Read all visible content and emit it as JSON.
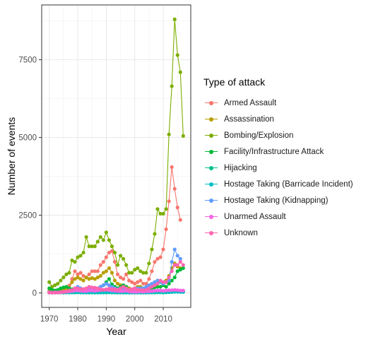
{
  "chart_data": {
    "type": "line",
    "xlabel": "Year",
    "ylabel": "Number of events",
    "xlim": [
      1970,
      2017
    ],
    "ylim": [
      0,
      8800
    ],
    "xticks": [
      1970,
      1980,
      1990,
      2000,
      2010
    ],
    "yticks": [
      0,
      2500,
      5000,
      7500
    ],
    "grid": true,
    "legend_title": "Type of attack",
    "legend_position": "right",
    "x": [
      1970,
      1971,
      1972,
      1973,
      1974,
      1975,
      1976,
      1977,
      1978,
      1979,
      1980,
      1981,
      1982,
      1983,
      1984,
      1985,
      1986,
      1987,
      1988,
      1989,
      1990,
      1991,
      1992,
      1993,
      1994,
      1995,
      1996,
      1997,
      1998,
      1999,
      2000,
      2001,
      2002,
      2003,
      2004,
      2005,
      2006,
      2007,
      2008,
      2009,
      2010,
      2011,
      2012,
      2013,
      2014,
      2015,
      2016,
      2017
    ],
    "series": [
      {
        "name": "Armed Assault",
        "color": "#F8766D",
        "values": [
          60,
          40,
          60,
          70,
          90,
          120,
          170,
          240,
          450,
          700,
          600,
          650,
          550,
          500,
          600,
          700,
          700,
          700,
          900,
          1000,
          1150,
          1300,
          1350,
          1000,
          600,
          500,
          450,
          600,
          400,
          350,
          300,
          350,
          400,
          300,
          300,
          450,
          700,
          1000,
          1100,
          1150,
          1400,
          2050,
          2950,
          4050,
          3350,
          2750,
          2350,
          null
        ]
      },
      {
        "name": "Assassination",
        "color": "#B79F00",
        "values": [
          40,
          30,
          40,
          60,
          70,
          90,
          120,
          150,
          350,
          450,
          500,
          450,
          400,
          500,
          450,
          480,
          450,
          500,
          550,
          650,
          700,
          800,
          650,
          400,
          300,
          250,
          200,
          200,
          150,
          120,
          150,
          200,
          200,
          150,
          150,
          200,
          250,
          350,
          400,
          350,
          300,
          400,
          550,
          800,
          950,
          850,
          800,
          null
        ]
      },
      {
        "name": "Bombing/Explosion",
        "color": "#7CAE00",
        "values": [
          350,
          200,
          250,
          300,
          400,
          500,
          600,
          650,
          1050,
          1000,
          1150,
          1200,
          1300,
          1800,
          1500,
          1500,
          1500,
          1650,
          1800,
          1700,
          1950,
          1700,
          1500,
          1300,
          900,
          1200,
          1100,
          900,
          650,
          650,
          750,
          800,
          700,
          650,
          650,
          950,
          1400,
          1900,
          2700,
          2550,
          2550,
          2700,
          5100,
          6650,
          8800,
          7650,
          7100,
          5050
        ]
      },
      {
        "name": "Facility/Infrastructure Attack",
        "color": "#00BA38",
        "values": [
          150,
          100,
          80,
          100,
          150,
          180,
          200,
          150,
          120,
          150,
          150,
          120,
          120,
          130,
          120,
          130,
          140,
          150,
          200,
          250,
          350,
          450,
          280,
          200,
          150,
          200,
          250,
          200,
          100,
          80,
          100,
          120,
          100,
          90,
          100,
          120,
          150,
          180,
          200,
          200,
          250,
          200,
          300,
          400,
          500,
          700,
          750,
          800
        ]
      },
      {
        "name": "Hijacking",
        "color": "#00C08B",
        "values": [
          20,
          15,
          20,
          15,
          15,
          10,
          15,
          15,
          15,
          15,
          20,
          15,
          15,
          15,
          10,
          15,
          10,
          10,
          15,
          15,
          15,
          20,
          15,
          15,
          10,
          15,
          10,
          10,
          10,
          10,
          10,
          10,
          10,
          10,
          10,
          15,
          15,
          15,
          20,
          20,
          15,
          20,
          25,
          30,
          40,
          40,
          40,
          40
        ]
      },
      {
        "name": "Hostage Taking (Barricade Incident)",
        "color": "#00BFC4",
        "values": [
          15,
          10,
          15,
          10,
          15,
          15,
          20,
          20,
          20,
          30,
          30,
          20,
          20,
          20,
          20,
          20,
          20,
          20,
          20,
          20,
          30,
          30,
          25,
          20,
          20,
          20,
          20,
          20,
          15,
          15,
          15,
          15,
          15,
          15,
          15,
          20,
          25,
          30,
          30,
          30,
          25,
          25,
          30,
          30,
          35,
          40,
          30,
          30
        ]
      },
      {
        "name": "Hostage Taking (Kidnapping)",
        "color": "#619CFF",
        "values": [
          20,
          10,
          20,
          20,
          30,
          40,
          50,
          60,
          100,
          150,
          200,
          150,
          100,
          80,
          100,
          150,
          120,
          150,
          200,
          250,
          300,
          250,
          200,
          150,
          120,
          150,
          150,
          120,
          100,
          120,
          150,
          150,
          150,
          150,
          200,
          250,
          300,
          350,
          400,
          350,
          300,
          350,
          400,
          1000,
          1400,
          1200,
          1100,
          null
        ]
      },
      {
        "name": "Unarmed Assault",
        "color": "#F564E3",
        "values": [
          20,
          15,
          20,
          20,
          25,
          30,
          40,
          50,
          60,
          80,
          80,
          70,
          60,
          60,
          80,
          80,
          70,
          80,
          90,
          100,
          100,
          90,
          80,
          70,
          60,
          60,
          60,
          70,
          50,
          40,
          40,
          40,
          50,
          40,
          50,
          50,
          60,
          70,
          80,
          80,
          70,
          80,
          90,
          90,
          100,
          90,
          80,
          80
        ]
      },
      {
        "name": "Unknown",
        "color": "#FF64B0",
        "values": [
          10,
          10,
          10,
          15,
          20,
          40,
          50,
          80,
          100,
          150,
          150,
          120,
          130,
          150,
          200,
          180,
          170,
          150,
          120,
          100,
          120,
          140,
          130,
          120,
          100,
          150,
          200,
          150,
          100,
          120,
          150,
          100,
          100,
          90,
          100,
          150,
          200,
          250,
          300,
          400,
          350,
          350,
          500,
          700,
          900,
          900,
          1000,
          900
        ]
      }
    ]
  }
}
